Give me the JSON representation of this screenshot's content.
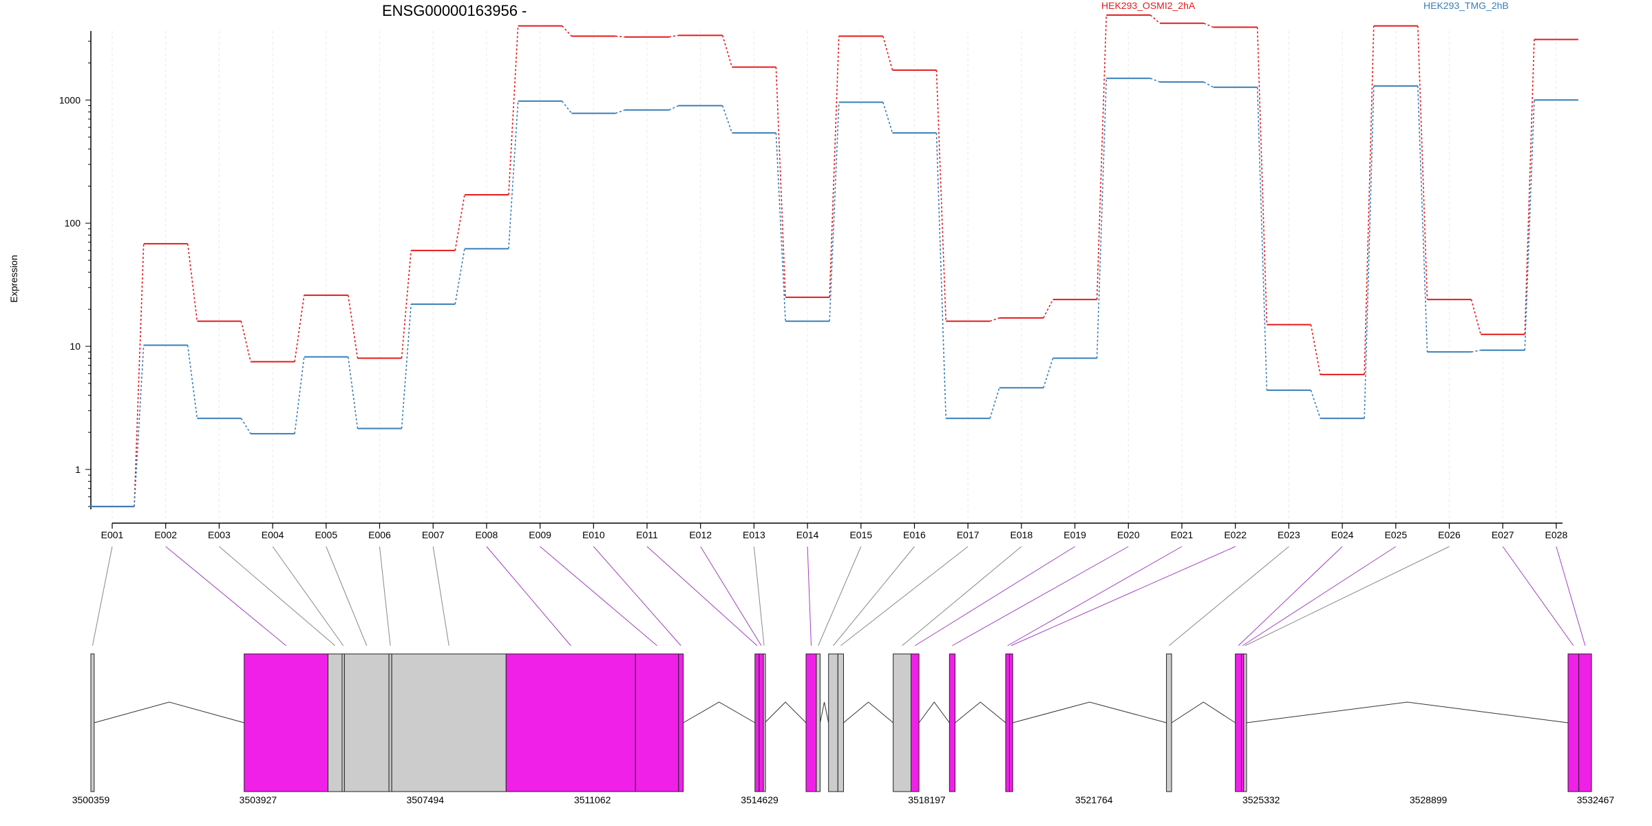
{
  "chart_data": {
    "type": "line",
    "title": "ENSG00000163956 -",
    "ylabel": "Expression",
    "y_scale": "log",
    "yticks": [
      "1",
      "10",
      "100",
      "1000"
    ],
    "categories": [
      "E001",
      "E002",
      "E003",
      "E004",
      "E005",
      "E006",
      "E007",
      "E008",
      "E009",
      "E010",
      "E011",
      "E012",
      "E013",
      "E014",
      "E015",
      "E016",
      "E017",
      "E018",
      "E019",
      "E020",
      "E021",
      "E022",
      "E023",
      "E024",
      "E025",
      "E026",
      "E027",
      "E028"
    ],
    "series": [
      {
        "name": "HEK293_OSMI2_2hA",
        "color": "#e41a1c",
        "values": [
          0.5,
          68,
          16,
          7.5,
          26,
          8,
          60,
          170,
          4000,
          3300,
          3250,
          3350,
          1850,
          25,
          3300,
          1750,
          16,
          17,
          24,
          4900,
          4200,
          3900,
          15,
          5.9,
          4000,
          24,
          12.5,
          3100
        ]
      },
      {
        "name": "HEK293_TMG_2hB",
        "color": "#377eb8",
        "values": [
          0.5,
          10.2,
          2.6,
          1.95,
          8.2,
          2.15,
          22,
          62,
          980,
          780,
          830,
          900,
          540,
          16,
          960,
          540,
          2.6,
          4.6,
          8,
          1500,
          1400,
          1270,
          4.4,
          2.6,
          1300,
          9,
          9.3,
          1000
        ]
      }
    ],
    "genome_ticks": [
      "3500359",
      "3503927",
      "3507494",
      "3511062",
      "3514629",
      "3518197",
      "3521764",
      "3525332",
      "3528899",
      "3532467"
    ],
    "genome_range": [
      3500359,
      3532467
    ],
    "exon_colors": {
      "significant": "#f020e8",
      "normal": "#cccccc"
    },
    "exons": [
      {
        "id": "E001",
        "start": 3500359,
        "end": 3500430,
        "significant": false
      },
      {
        "id": "E002",
        "start": 3503630,
        "end": 3505420,
        "significant": true
      },
      {
        "id": "E003",
        "start": 3505420,
        "end": 3505720,
        "significant": false
      },
      {
        "id": "E004",
        "start": 3505720,
        "end": 3505770,
        "significant": false
      },
      {
        "id": "E005",
        "start": 3505770,
        "end": 3506720,
        "significant": false
      },
      {
        "id": "E006",
        "start": 3506720,
        "end": 3506780,
        "significant": false
      },
      {
        "id": "E007",
        "start": 3506780,
        "end": 3509220,
        "significant": false
      },
      {
        "id": "E008",
        "start": 3509220,
        "end": 3511980,
        "significant": true
      },
      {
        "id": "E009",
        "start": 3511980,
        "end": 3512900,
        "significant": true
      },
      {
        "id": "E010",
        "start": 3512900,
        "end": 3513000,
        "significant": true
      },
      {
        "id": "E011",
        "start": 3514530,
        "end": 3514620,
        "significant": true
      },
      {
        "id": "E012",
        "start": 3514620,
        "end": 3514710,
        "significant": true
      },
      {
        "id": "E013",
        "start": 3514710,
        "end": 3514740,
        "significant": false
      },
      {
        "id": "E014",
        "start": 3515620,
        "end": 3515840,
        "significant": true
      },
      {
        "id": "E015",
        "start": 3515840,
        "end": 3515920,
        "significant": false
      },
      {
        "id": "E016",
        "start": 3516100,
        "end": 3516300,
        "significant": false
      },
      {
        "id": "E017",
        "start": 3516300,
        "end": 3516420,
        "significant": false
      },
      {
        "id": "E018",
        "start": 3517480,
        "end": 3517860,
        "significant": false
      },
      {
        "id": "E019",
        "start": 3517860,
        "end": 3518030,
        "significant": true
      },
      {
        "id": "E020",
        "start": 3518680,
        "end": 3518800,
        "significant": true
      },
      {
        "id": "E021",
        "start": 3519880,
        "end": 3519960,
        "significant": true
      },
      {
        "id": "E022",
        "start": 3519960,
        "end": 3520030,
        "significant": true
      },
      {
        "id": "E023",
        "start": 3523310,
        "end": 3523420,
        "significant": false
      },
      {
        "id": "E024",
        "start": 3524780,
        "end": 3524910,
        "significant": true
      },
      {
        "id": "E025",
        "start": 3524910,
        "end": 3524960,
        "significant": true
      },
      {
        "id": "E026",
        "start": 3524960,
        "end": 3525020,
        "significant": false
      },
      {
        "id": "E027",
        "start": 3531880,
        "end": 3532110,
        "significant": true
      },
      {
        "id": "E028",
        "start": 3532110,
        "end": 3532380,
        "significant": true
      }
    ],
    "intron_arcs": [
      [
        3500430,
        3503630
      ],
      [
        3513000,
        3514530
      ],
      [
        3514740,
        3515620
      ],
      [
        3515920,
        3516100
      ],
      [
        3516420,
        3517480
      ],
      [
        3518030,
        3518680
      ],
      [
        3518800,
        3519880
      ],
      [
        3520030,
        3523310
      ],
      [
        3523420,
        3524780
      ],
      [
        3525020,
        3531880
      ]
    ]
  }
}
